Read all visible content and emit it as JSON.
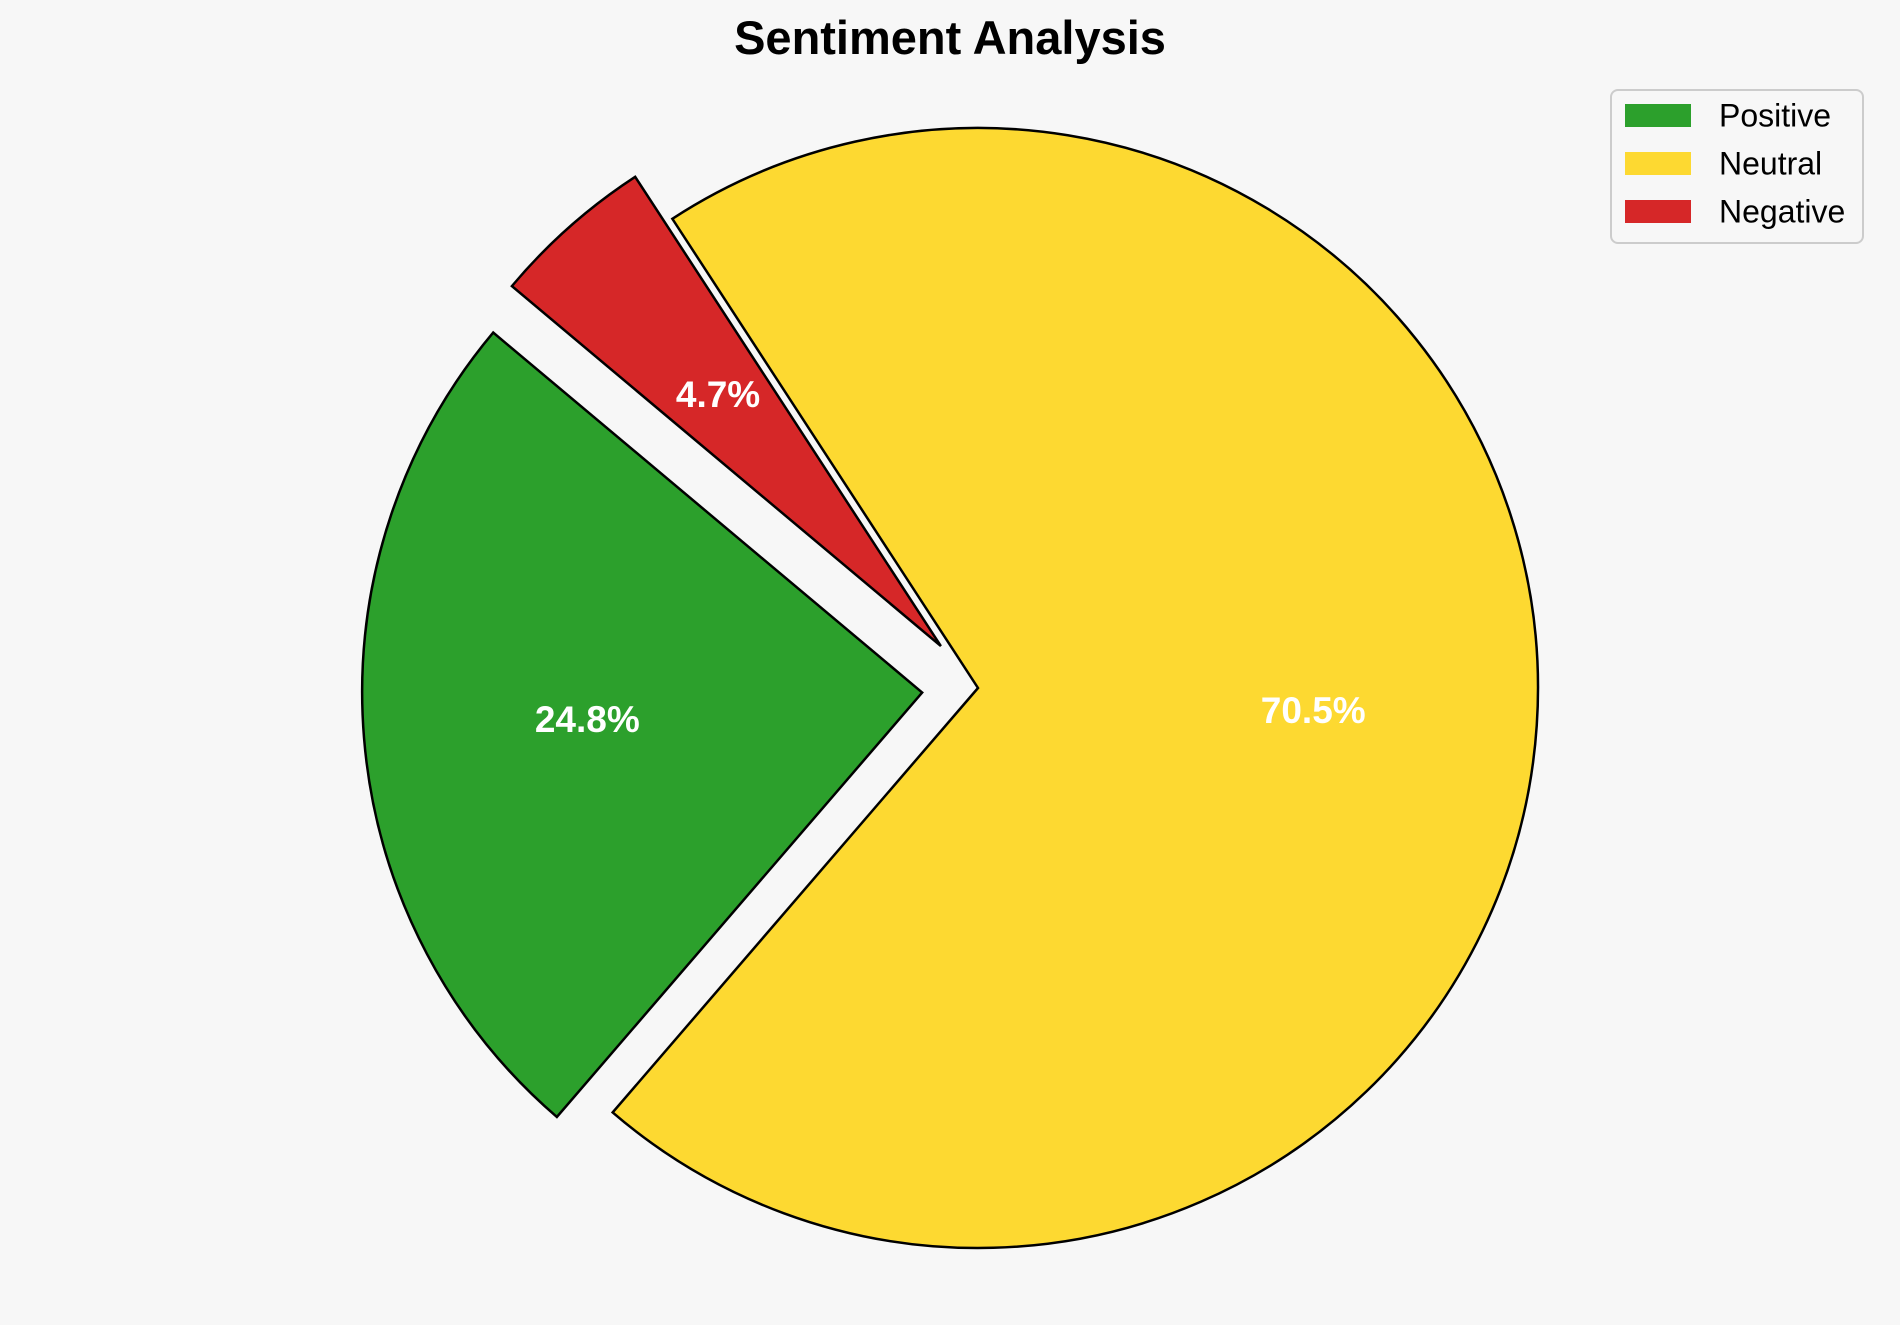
{
  "chart_data": {
    "type": "pie",
    "title": "Sentiment Analysis",
    "categories": [
      "Positive",
      "Neutral",
      "Negative"
    ],
    "values": [
      24.8,
      70.5,
      4.7
    ],
    "labels": [
      "24.8%",
      "70.5%",
      "4.7%"
    ],
    "colors": [
      "#2ca02c",
      "#fdd931",
      "#d62728"
    ],
    "exploded": [
      true,
      false,
      true
    ],
    "slice_edge_color": "#000000",
    "label_color": "#ffffff",
    "legend": {
      "position": "top-right",
      "entries": [
        "Positive",
        "Neutral",
        "Negative"
      ]
    }
  }
}
